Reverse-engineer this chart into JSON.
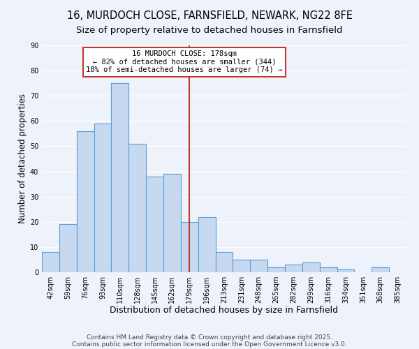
{
  "title": "16, MURDOCH CLOSE, FARNSFIELD, NEWARK, NG22 8FE",
  "subtitle": "Size of property relative to detached houses in Farnsfield",
  "xlabel": "Distribution of detached houses by size in Farnsfield",
  "ylabel": "Number of detached properties",
  "bin_labels": [
    "42sqm",
    "59sqm",
    "76sqm",
    "93sqm",
    "110sqm",
    "128sqm",
    "145sqm",
    "162sqm",
    "179sqm",
    "196sqm",
    "213sqm",
    "231sqm",
    "248sqm",
    "265sqm",
    "282sqm",
    "299sqm",
    "316sqm",
    "334sqm",
    "351sqm",
    "368sqm",
    "385sqm"
  ],
  "bar_heights": [
    8,
    19,
    56,
    59,
    75,
    51,
    38,
    39,
    20,
    22,
    8,
    5,
    5,
    2,
    3,
    4,
    2,
    1,
    0,
    2,
    0
  ],
  "bar_color": "#c6d9f1",
  "bar_edge_color": "#5b9bd5",
  "highlight_bar_index": 8,
  "vline_color": "#c0392b",
  "ylim": [
    0,
    90
  ],
  "yticks": [
    0,
    10,
    20,
    30,
    40,
    50,
    60,
    70,
    80,
    90
  ],
  "annotation_title": "16 MURDOCH CLOSE: 178sqm",
  "annotation_line1": "← 82% of detached houses are smaller (344)",
  "annotation_line2": "18% of semi-detached houses are larger (74) →",
  "annotation_box_color": "#ffffff",
  "annotation_box_edge_color": "#c0392b",
  "background_color": "#eef2fb",
  "grid_color": "#ffffff",
  "footer1": "Contains HM Land Registry data © Crown copyright and database right 2025.",
  "footer2": "Contains public sector information licensed under the Open Government Licence v3.0.",
  "title_fontsize": 10.5,
  "subtitle_fontsize": 9.5,
  "xlabel_fontsize": 9,
  "ylabel_fontsize": 8.5,
  "tick_fontsize": 7,
  "annotation_title_fontsize": 8,
  "annotation_body_fontsize": 7.5,
  "footer_fontsize": 6.5
}
